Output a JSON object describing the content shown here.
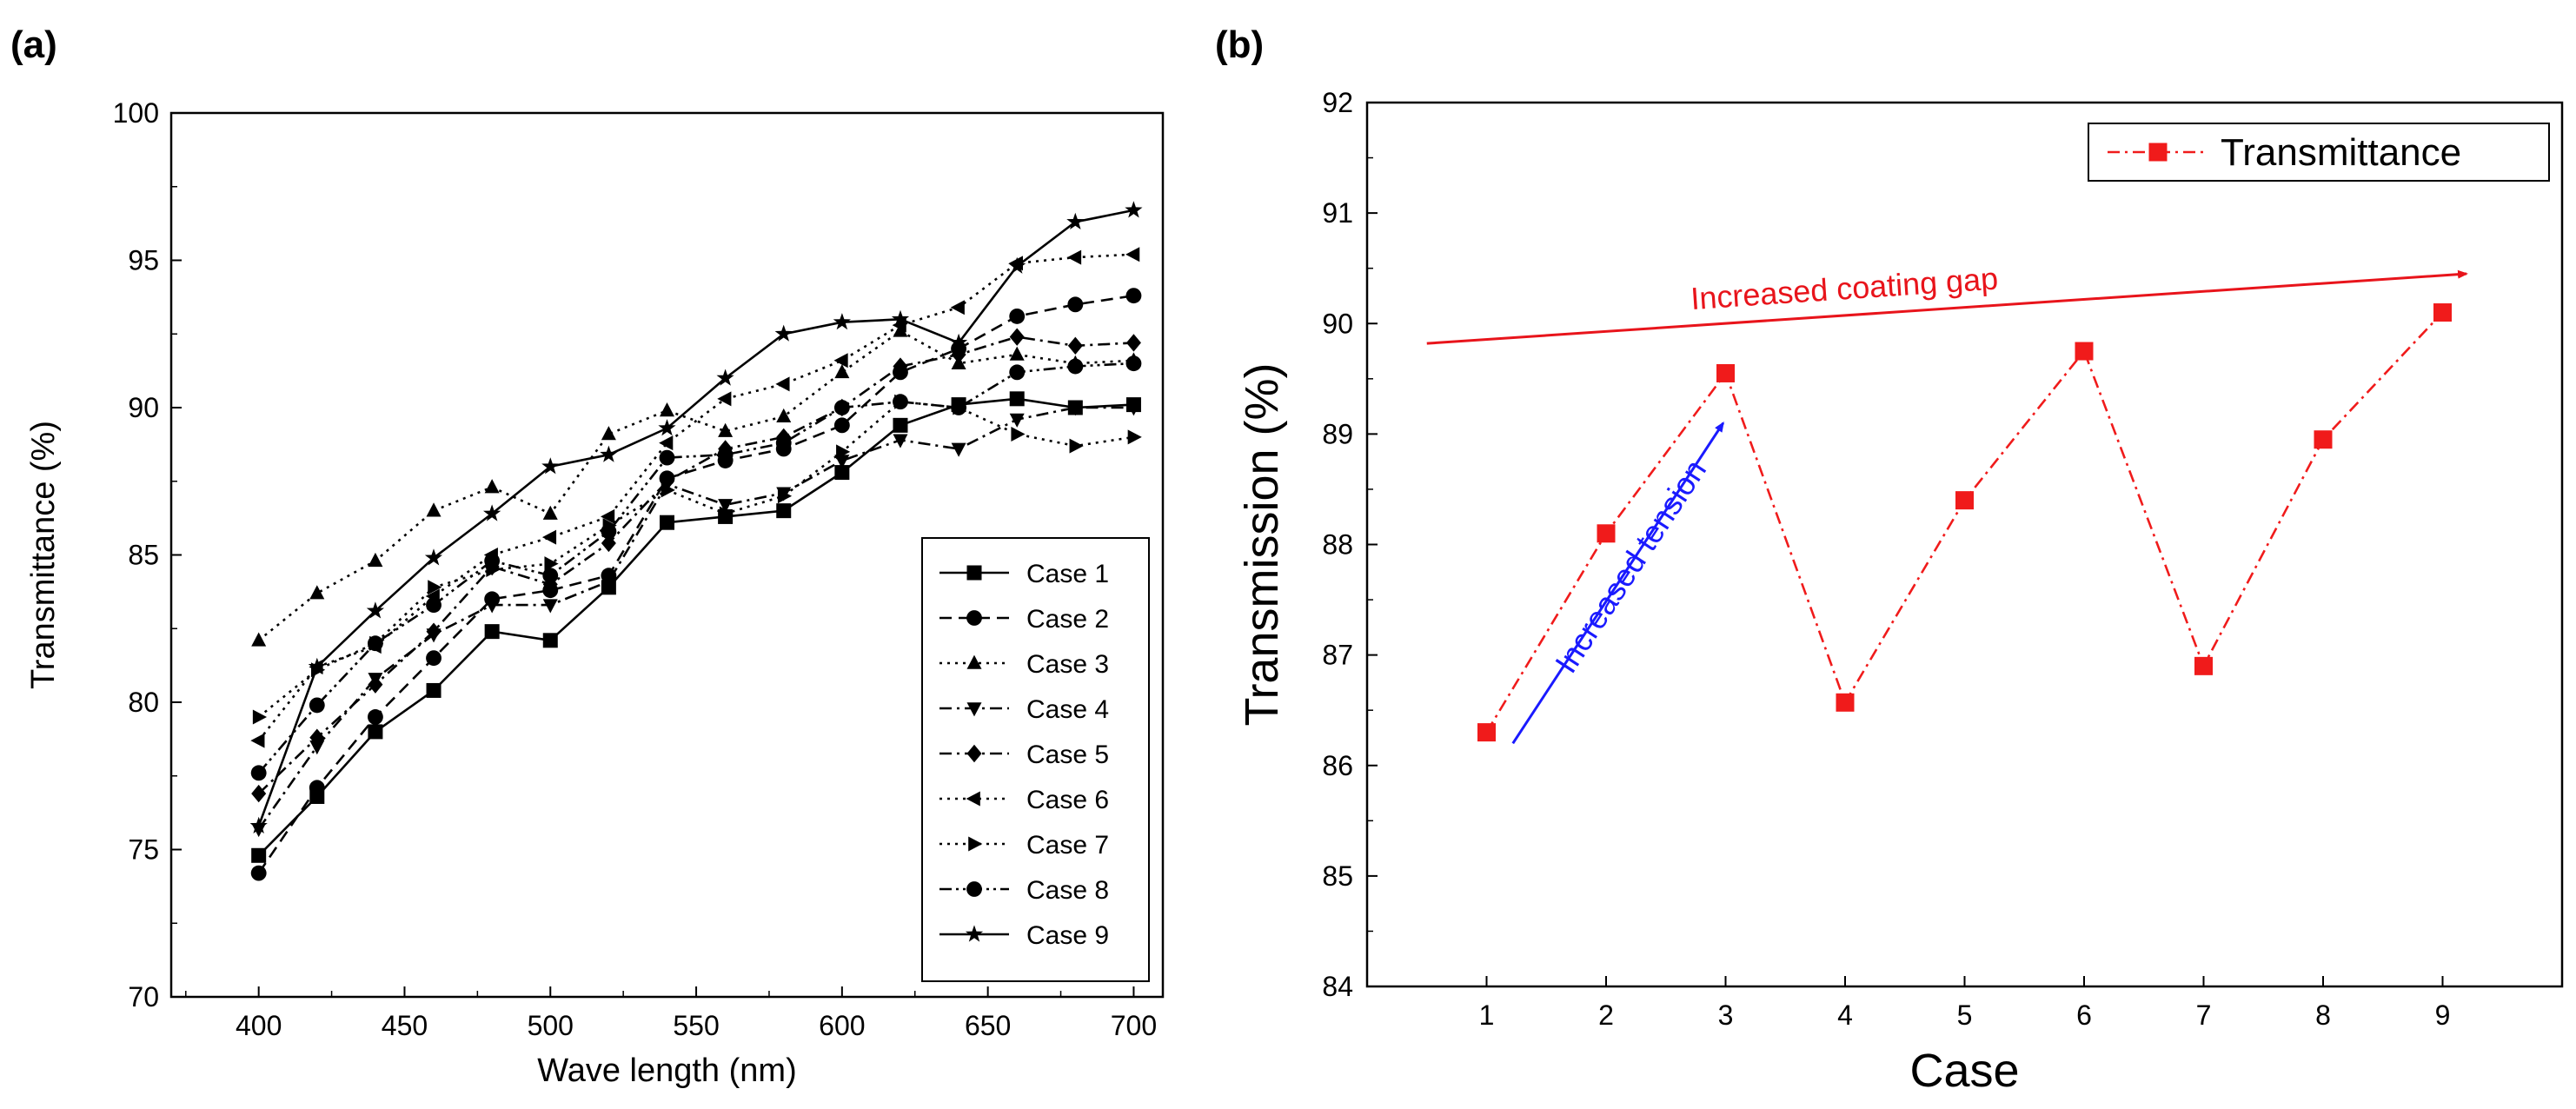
{
  "panel_a_label": "(a)",
  "panel_b_label": "(b)",
  "chart_data": [
    {
      "type": "line",
      "panel": "(a)",
      "title": "",
      "xlabel": "Wave length (nm)",
      "ylabel": "Transmittance (%)",
      "xlim": [
        370,
        710
      ],
      "ylim": [
        70,
        100
      ],
      "xticks": [
        400,
        450,
        500,
        550,
        600,
        650,
        700
      ],
      "yticks": [
        70,
        75,
        80,
        85,
        90,
        95,
        100
      ],
      "legend_position": "bottom-right",
      "x": [
        400,
        420,
        440,
        460,
        480,
        500,
        520,
        540,
        560,
        580,
        600,
        620,
        640,
        660,
        680,
        700
      ],
      "series": [
        {
          "name": "Case 1",
          "marker": "square",
          "dash": "solid",
          "values": [
            74.8,
            76.8,
            79.0,
            80.4,
            82.4,
            82.1,
            83.9,
            86.1,
            86.3,
            86.5,
            87.8,
            89.4,
            90.1,
            90.3,
            90.0,
            90.1
          ]
        },
        {
          "name": "Case 2",
          "marker": "circle",
          "dash": "dashed",
          "values": [
            74.2,
            77.1,
            79.5,
            81.5,
            83.5,
            83.8,
            84.3,
            87.6,
            88.2,
            88.6,
            89.4,
            91.2,
            92.0,
            93.1,
            93.5,
            93.8
          ]
        },
        {
          "name": "Case 3",
          "marker": "triangle-up",
          "dash": "dotted",
          "values": [
            82.1,
            83.7,
            84.8,
            86.5,
            87.3,
            86.4,
            89.1,
            89.9,
            89.2,
            89.7,
            91.2,
            92.6,
            91.5,
            91.8,
            91.5,
            91.6
          ]
        },
        {
          "name": "Case 4",
          "marker": "triangle-down",
          "dash": "dashdot",
          "values": [
            75.7,
            78.5,
            80.8,
            82.3,
            83.3,
            83.3,
            84.1,
            87.4,
            86.7,
            87.1,
            88.2,
            88.9,
            88.6,
            89.6,
            90.0,
            90.0
          ]
        },
        {
          "name": "Case 5",
          "marker": "diamond",
          "dash": "dashdot",
          "values": [
            76.9,
            78.8,
            80.6,
            82.4,
            84.6,
            84.0,
            85.4,
            87.5,
            88.6,
            89.0,
            90.0,
            91.4,
            91.8,
            92.4,
            92.1,
            92.2
          ]
        },
        {
          "name": "Case 6",
          "marker": "triangle-left",
          "dash": "dotted",
          "values": [
            78.7,
            81.2,
            81.9,
            83.6,
            85.0,
            85.6,
            86.3,
            88.8,
            90.3,
            90.8,
            91.6,
            92.8,
            93.4,
            94.9,
            95.1,
            95.2
          ]
        },
        {
          "name": "Case 7",
          "marker": "triangle-right",
          "dash": "dotted",
          "values": [
            79.5,
            81.1,
            82.0,
            83.9,
            84.5,
            84.7,
            86.0,
            87.2,
            86.4,
            87.0,
            88.5,
            90.2,
            90.0,
            89.1,
            88.7,
            89.0
          ]
        },
        {
          "name": "Case 8",
          "marker": "circle",
          "dash": "dashdotdot",
          "values": [
            77.6,
            79.9,
            82.0,
            83.3,
            84.8,
            84.3,
            85.8,
            88.3,
            88.4,
            88.8,
            90.0,
            90.2,
            90.0,
            91.2,
            91.4,
            91.5
          ]
        },
        {
          "name": "Case 9",
          "marker": "star",
          "dash": "solid",
          "values": [
            75.8,
            81.2,
            83.1,
            84.9,
            86.4,
            88.0,
            88.4,
            89.3,
            91.0,
            92.5,
            92.9,
            93.0,
            92.2,
            94.8,
            96.3,
            96.7
          ]
        }
      ]
    },
    {
      "type": "line",
      "panel": "(b)",
      "title": "",
      "xlabel": "Case",
      "ylabel": "Transmission (%)",
      "xlim": [
        0,
        10
      ],
      "ylim": [
        84,
        92
      ],
      "xticks": [
        1,
        2,
        3,
        4,
        5,
        6,
        7,
        8,
        9
      ],
      "yticks": [
        84,
        85,
        86,
        87,
        88,
        89,
        90,
        91,
        92
      ],
      "legend_position": "top-right",
      "x": [
        1,
        2,
        3,
        4,
        5,
        6,
        7,
        8,
        9
      ],
      "series": [
        {
          "name": "Transmittance",
          "marker": "square",
          "dash": "dashdot",
          "color": "#f01b1b",
          "values": [
            86.3,
            88.1,
            89.55,
            86.57,
            88.4,
            89.75,
            86.9,
            88.95,
            90.1
          ]
        }
      ],
      "annotations": [
        {
          "text": "Increased coating gap",
          "color": "#e8141b",
          "from": [
            0.5,
            89.82
          ],
          "to": [
            9.2,
            90.45
          ]
        },
        {
          "text": "Increased tension",
          "color": "#1a1aff",
          "from": [
            1.22,
            86.2
          ],
          "to": [
            2.98,
            89.1
          ]
        }
      ]
    }
  ]
}
